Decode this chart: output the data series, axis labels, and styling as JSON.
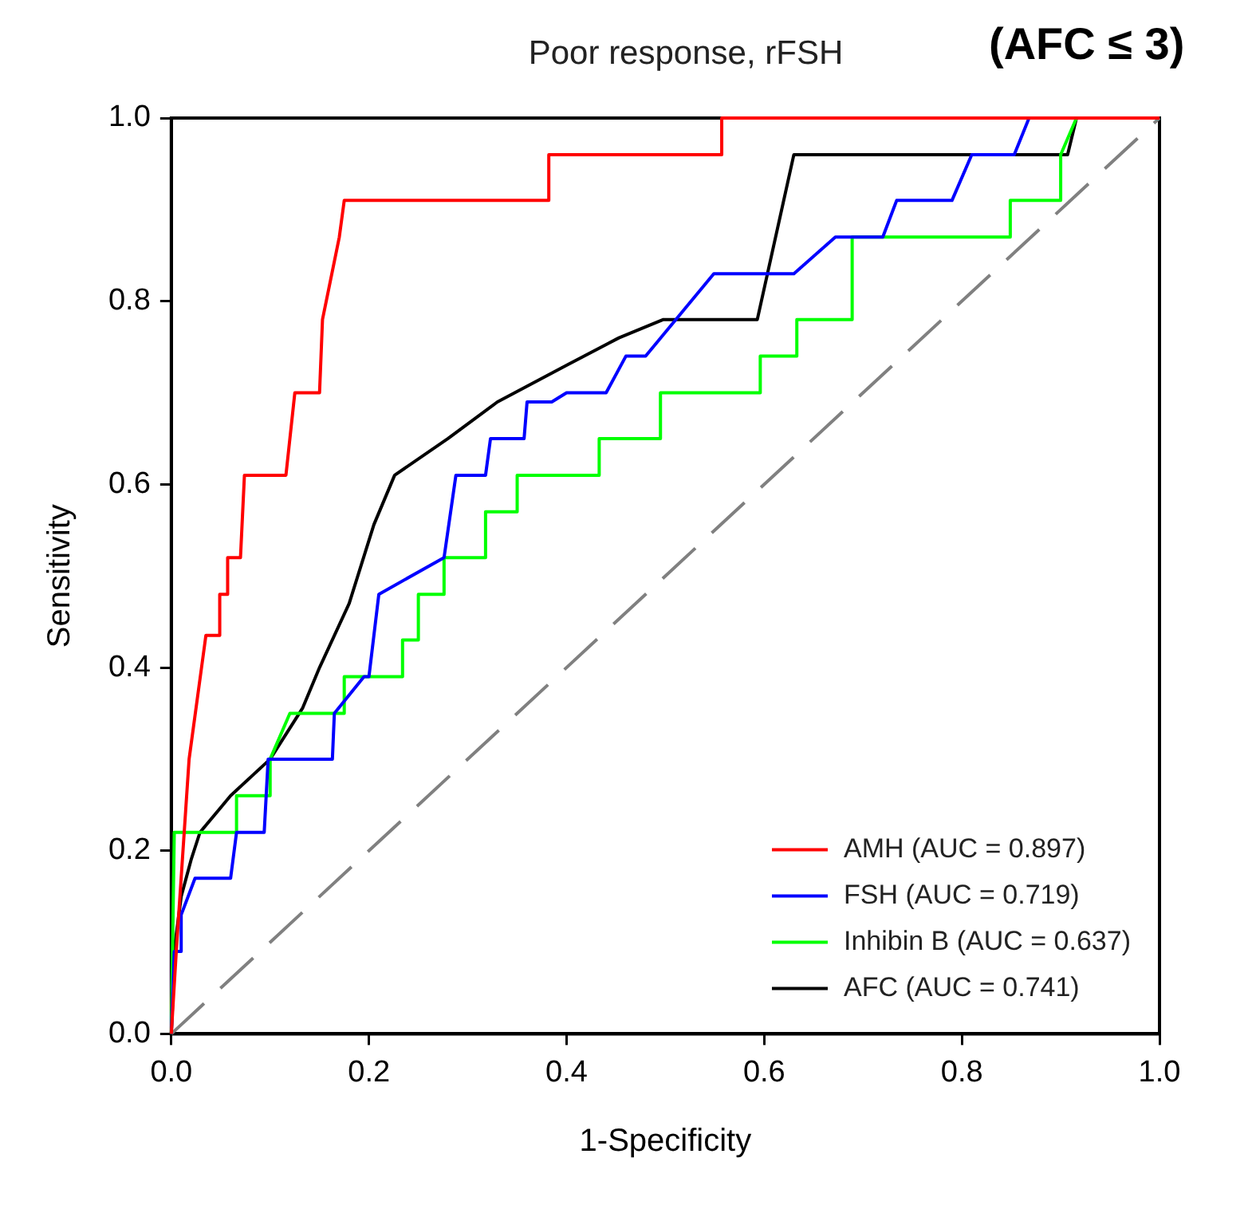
{
  "chart_data": {
    "type": "line",
    "title": "Poor response, rFSH",
    "subtitle": "(AFC ≤ 3)",
    "xlabel": "1-Specificity",
    "ylabel": "Sensitivity",
    "xlim": [
      0,
      1
    ],
    "ylim": [
      0,
      1
    ],
    "xticks": [
      {
        "value": 0,
        "label": "0.0"
      },
      {
        "value": 0.2,
        "label": "0.2"
      },
      {
        "value": 0.4,
        "label": "0.4"
      },
      {
        "value": 0.6,
        "label": "0.6"
      },
      {
        "value": 0.8,
        "label": "0.8"
      },
      {
        "value": 1,
        "label": "1.0"
      }
    ],
    "yticks": [
      {
        "value": 0,
        "label": "0.0"
      },
      {
        "value": 0.2,
        "label": "0.2"
      },
      {
        "value": 0.4,
        "label": "0.4"
      },
      {
        "value": 0.6,
        "label": "0.6"
      },
      {
        "value": 0.8,
        "label": "0.8"
      },
      {
        "value": 1,
        "label": "1.0"
      }
    ],
    "grid": false,
    "legend": "bottom right",
    "marker": "none",
    "series": [
      {
        "name": "AMH (AUC = 0.897)",
        "color": "#ff0000",
        "x": [
          0,
          0.005,
          0.018,
          0.035,
          0.049,
          0.049,
          0.057,
          0.057,
          0.07,
          0.074,
          0.116,
          0.125,
          0.15,
          0.153,
          0.17,
          0.175,
          0.382,
          0.382,
          0.557,
          0.557,
          1
        ],
        "values": [
          0,
          0.09,
          0.3,
          0.435,
          0.435,
          0.48,
          0.48,
          0.52,
          0.52,
          0.61,
          0.61,
          0.7,
          0.7,
          0.78,
          0.87,
          0.91,
          0.91,
          0.96,
          0.96,
          1,
          1
        ]
      },
      {
        "name": "FSH (AUC = 0.719)",
        "color": "#0000ff",
        "x": [
          0,
          0.003,
          0.01,
          0.01,
          0.024,
          0.06,
          0.066,
          0.094,
          0.098,
          0.163,
          0.165,
          0.195,
          0.2,
          0.21,
          0.276,
          0.288,
          0.318,
          0.323,
          0.357,
          0.36,
          0.385,
          0.4,
          0.44,
          0.46,
          0.48,
          0.549,
          0.63,
          0.672,
          0.72,
          0.734,
          0.79,
          0.81,
          0.853,
          0.868
        ],
        "values": [
          0,
          0.09,
          0.09,
          0.13,
          0.17,
          0.17,
          0.22,
          0.22,
          0.3,
          0.3,
          0.35,
          0.39,
          0.39,
          0.48,
          0.52,
          0.61,
          0.61,
          0.65,
          0.65,
          0.69,
          0.69,
          0.7,
          0.7,
          0.74,
          0.74,
          0.83,
          0.83,
          0.87,
          0.87,
          0.91,
          0.91,
          0.96,
          0.96,
          1
        ]
      },
      {
        "name": "Inhibin B (AUC = 0.637)",
        "color": "#00ff00",
        "x": [
          0,
          0.003,
          0.066,
          0.066,
          0.1,
          0.1,
          0.12,
          0.175,
          0.175,
          0.234,
          0.234,
          0.25,
          0.25,
          0.276,
          0.276,
          0.318,
          0.318,
          0.35,
          0.35,
          0.433,
          0.433,
          0.495,
          0.495,
          0.596,
          0.596,
          0.633,
          0.633,
          0.689,
          0.689,
          0.849,
          0.849,
          0.9,
          0.9,
          0.916
        ],
        "values": [
          0,
          0.22,
          0.22,
          0.26,
          0.26,
          0.3,
          0.35,
          0.35,
          0.39,
          0.39,
          0.43,
          0.43,
          0.48,
          0.48,
          0.52,
          0.52,
          0.57,
          0.57,
          0.61,
          0.61,
          0.65,
          0.65,
          0.7,
          0.7,
          0.74,
          0.74,
          0.78,
          0.78,
          0.87,
          0.87,
          0.91,
          0.91,
          0.96,
          1
        ]
      },
      {
        "name": "AFC (AUC = 0.741)",
        "color": "#000000",
        "x": [
          0,
          0.004,
          0.01,
          0.02,
          0.029,
          0.06,
          0.1,
          0.133,
          0.15,
          0.18,
          0.205,
          0.226,
          0.28,
          0.33,
          0.4,
          0.453,
          0.498,
          0.593,
          0.63,
          0.907,
          0.916,
          1
        ],
        "values": [
          0,
          0.1,
          0.15,
          0.19,
          0.22,
          0.26,
          0.3,
          0.356,
          0.4,
          0.47,
          0.556,
          0.61,
          0.65,
          0.69,
          0.73,
          0.76,
          0.78,
          0.78,
          0.96,
          0.96,
          1,
          1
        ]
      },
      {
        "color": "#808080",
        "line_style": "dashed",
        "x": [
          0,
          1
        ],
        "values": [
          0,
          1
        ]
      }
    ]
  }
}
